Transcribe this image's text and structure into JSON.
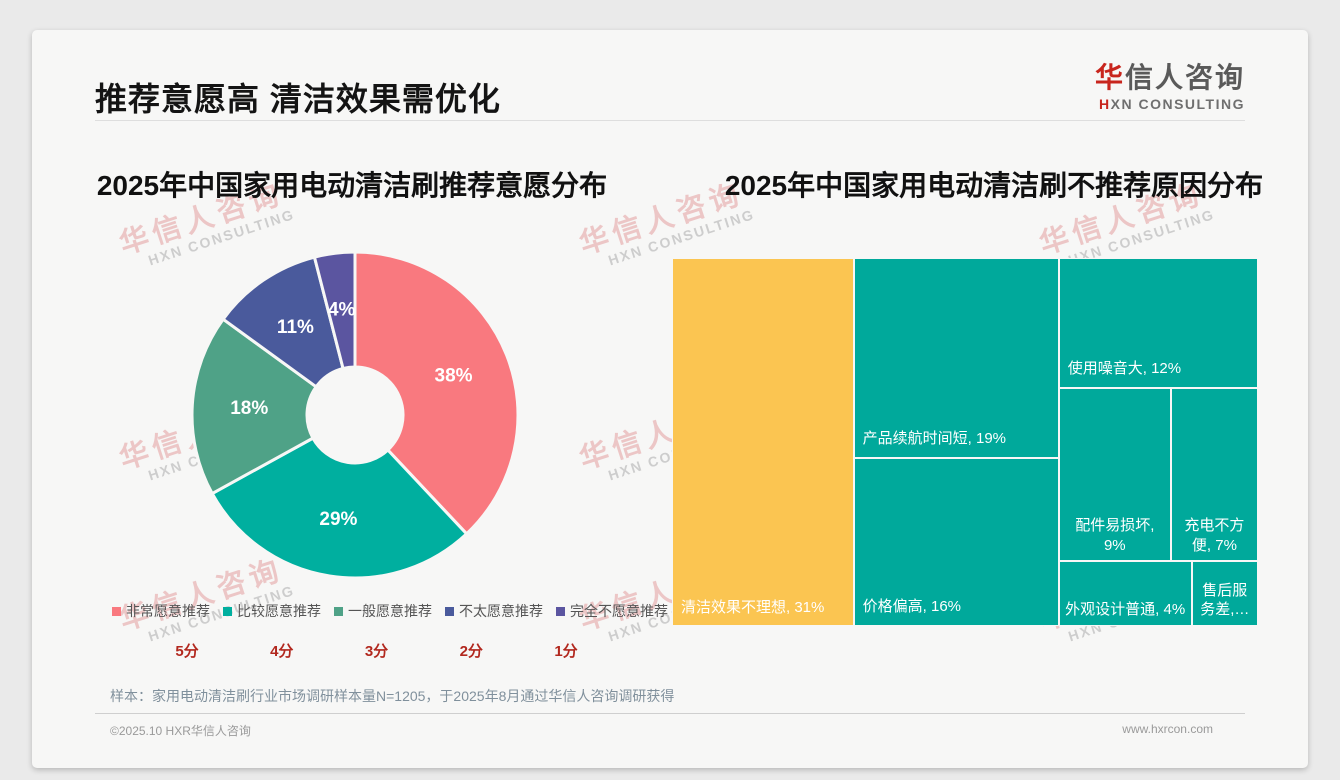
{
  "header": {
    "title": "推荐意愿高 清洁效果需优化"
  },
  "logo": {
    "cn_first": "华",
    "cn_rest": "信人咨询",
    "en_first": "H",
    "en_rest": "XN CONSULTING"
  },
  "watermark": {
    "line1": "华信人咨询",
    "line2": "HXN CONSULTING"
  },
  "chart_data": [
    {
      "type": "pie",
      "title": "2025年中国家用电动清洁刷推荐意愿分布",
      "donut": true,
      "start_angle_deg": 0,
      "clockwise": true,
      "legend_position": "bottom",
      "categories": [
        "非常愿意推荐",
        "比较愿意推荐",
        "一般愿意推荐",
        "不太愿意推荐",
        "完全不愿意推荐"
      ],
      "values": [
        38,
        29,
        18,
        11,
        4
      ],
      "labels": [
        "38%",
        "29%",
        "18%",
        "11%",
        "4%"
      ],
      "scores": [
        "5分",
        "4分",
        "3分",
        "2分",
        "1分"
      ],
      "colors": [
        "#F9797F",
        "#00AF9F",
        "#4FA287",
        "#4A5A9C",
        "#5B55A0"
      ]
    },
    {
      "type": "treemap",
      "title": "2025年中国家用电动清洁刷不推荐原因分布",
      "items": [
        {
          "name": "清洁效果不理想",
          "value": 31,
          "label": "清洁效果不理想, 31%",
          "color": "#FBC551"
        },
        {
          "name": "产品续航时间短",
          "value": 19,
          "label": "产品续航时间短, 19%",
          "color": "#00A99B"
        },
        {
          "name": "价格偏高",
          "value": 16,
          "label": "价格偏高, 16%",
          "color": "#00A99B"
        },
        {
          "name": "使用噪音大",
          "value": 12,
          "label": "使用噪音大, 12%",
          "color": "#00A99B"
        },
        {
          "name": "配件易损坏",
          "value": 9,
          "label": "配件易损坏, 9%",
          "color": "#00A99B"
        },
        {
          "name": "充电不方便",
          "value": 7,
          "label": "充电不方便, 7%",
          "color": "#00A99B"
        },
        {
          "name": "外观设计普通",
          "value": 4,
          "label": "外观设计普通, 4%",
          "color": "#00A99B"
        },
        {
          "name": "售后服务差",
          "value": 2,
          "label": "售后服务差,…",
          "color": "#00A99B"
        }
      ]
    }
  ],
  "footnote": {
    "sample": "样本：家用电动清洁刷行业市场调研样本量N=1205，于2025年8月通过华信人咨询调研获得"
  },
  "footer": {
    "left": "©2025.10 HXR华信人咨询",
    "right": "www.hxrcon.com"
  }
}
